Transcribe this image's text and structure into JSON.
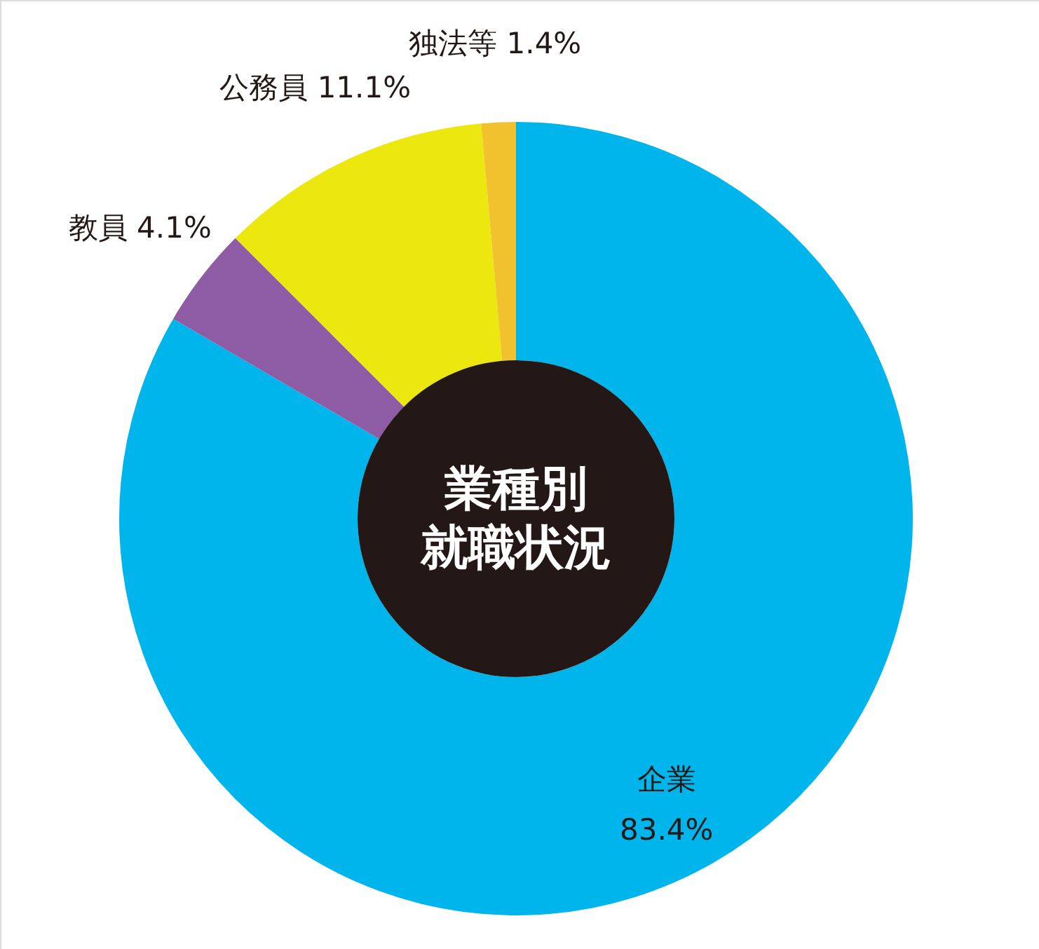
{
  "chart_data": {
    "type": "donut",
    "title": "業種別",
    "subtitle": "就職状況",
    "categories": [
      "企業",
      "教員",
      "公務員",
      "独法等"
    ],
    "values": [
      83.4,
      4.1,
      11.1,
      1.4
    ],
    "value_labels": [
      "83.4%",
      "4.1%",
      "11.1%",
      "1.4%"
    ],
    "colors": [
      "#00b5ec",
      "#8e5ba5",
      "#ece70f",
      "#f2c12e"
    ]
  }
}
